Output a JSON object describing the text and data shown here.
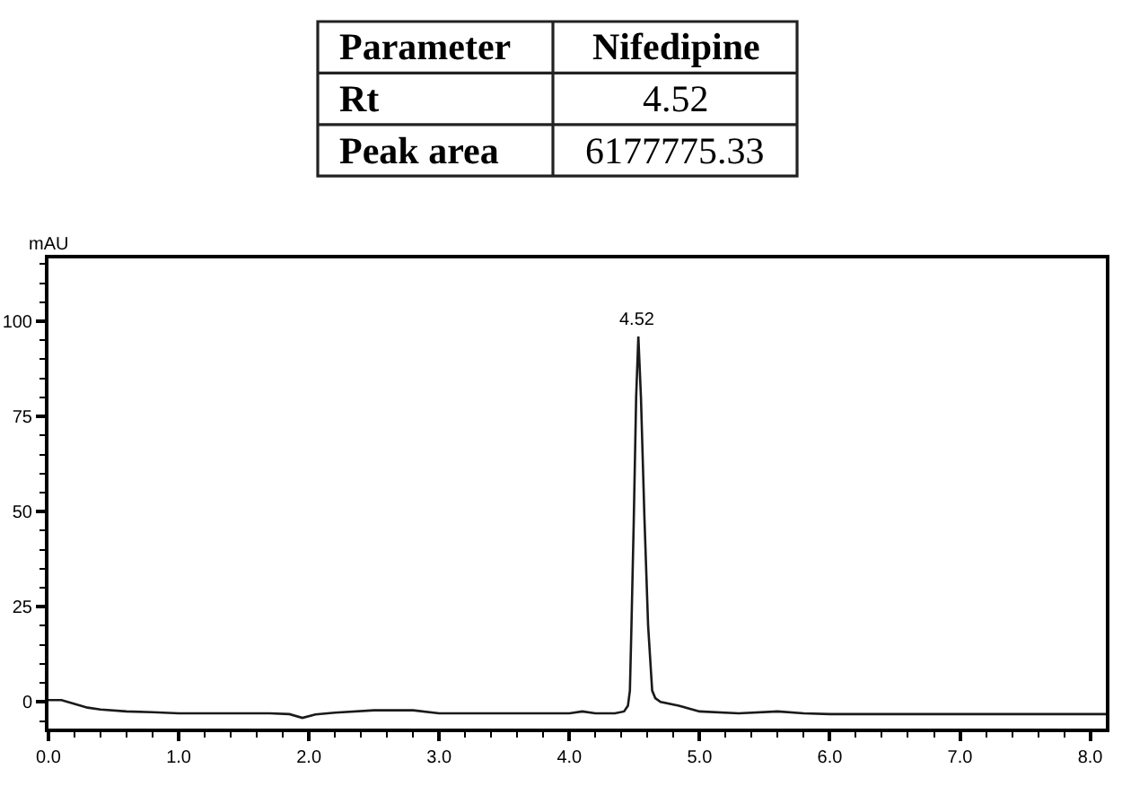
{
  "chart_data": [
    {
      "type": "other",
      "annotations": [
        "Parameter",
        "Nifedipine",
        "Rt",
        "4.52",
        "Peak area",
        "6177775.33"
      ]
    },
    {
      "type": "line",
      "ylabel": "mAU",
      "color": "#1a1a1a",
      "grid": false,
      "legend": false,
      "marker": "none",
      "line_style": "solid",
      "x": [
        0.0,
        0.1,
        0.2,
        0.3,
        0.4,
        0.6,
        0.8,
        1.0,
        1.4,
        1.7,
        1.85,
        1.95,
        2.05,
        2.2,
        2.5,
        2.8,
        3.0,
        3.5,
        4.0,
        4.1,
        4.2,
        4.35,
        4.42,
        4.45,
        4.465,
        4.477,
        4.495,
        4.513,
        4.53,
        4.55,
        4.577,
        4.605,
        4.636,
        4.66,
        4.7,
        4.84,
        5.0,
        5.3,
        5.6,
        5.8,
        6.0,
        7.0,
        8.0,
        8.12
      ],
      "values": [
        0.5,
        0.5,
        -0.5,
        -1.5,
        -2.0,
        -2.5,
        -2.7,
        -3.0,
        -3.0,
        -3.0,
        -3.2,
        -4.2,
        -3.3,
        -2.8,
        -2.2,
        -2.2,
        -3.0,
        -3.0,
        -3.0,
        -2.5,
        -3.0,
        -3.0,
        -2.5,
        -1.0,
        3,
        20,
        48,
        80,
        96,
        80,
        48,
        20,
        3,
        1.0,
        0.0,
        -1.0,
        -2.5,
        -3.0,
        -2.5,
        -3.0,
        -3.2,
        -3.2,
        -3.2,
        -3.2
      ],
      "xlim": [
        0,
        8.12
      ],
      "ylim": [
        -7,
        116.5
      ],
      "xticks": [
        {
          "value": 0,
          "label": "0.0"
        },
        {
          "value": 0.2,
          "label": null
        },
        {
          "value": 0.4,
          "label": null
        },
        {
          "value": 0.6,
          "label": null
        },
        {
          "value": 0.8,
          "label": null
        },
        {
          "value": 1,
          "label": "1.0"
        },
        {
          "value": 1.2,
          "label": null
        },
        {
          "value": 1.4,
          "label": null
        },
        {
          "value": 1.6,
          "label": null
        },
        {
          "value": 1.8,
          "label": null
        },
        {
          "value": 2,
          "label": "2.0"
        },
        {
          "value": 2.2,
          "label": null
        },
        {
          "value": 2.4,
          "label": null
        },
        {
          "value": 2.6,
          "label": null
        },
        {
          "value": 2.8,
          "label": null
        },
        {
          "value": 3,
          "label": "3.0"
        },
        {
          "value": 3.2,
          "label": null
        },
        {
          "value": 3.4,
          "label": null
        },
        {
          "value": 3.6,
          "label": null
        },
        {
          "value": 3.8,
          "label": null
        },
        {
          "value": 4,
          "label": "4.0"
        },
        {
          "value": 4.2,
          "label": null
        },
        {
          "value": 4.4,
          "label": null
        },
        {
          "value": 4.6,
          "label": null
        },
        {
          "value": 4.8,
          "label": null
        },
        {
          "value": 5,
          "label": "5.0"
        },
        {
          "value": 5.2,
          "label": null
        },
        {
          "value": 5.4,
          "label": null
        },
        {
          "value": 5.6,
          "label": null
        },
        {
          "value": 5.8,
          "label": null
        },
        {
          "value": 6,
          "label": "6.0"
        },
        {
          "value": 6.2,
          "label": null
        },
        {
          "value": 6.4,
          "label": null
        },
        {
          "value": 6.6,
          "label": null
        },
        {
          "value": 6.8,
          "label": null
        },
        {
          "value": 7,
          "label": "7.0"
        },
        {
          "value": 7.2,
          "label": null
        },
        {
          "value": 7.4,
          "label": null
        },
        {
          "value": 7.6,
          "label": null
        },
        {
          "value": 7.8,
          "label": null
        },
        {
          "value": 8,
          "label": "8.0"
        }
      ],
      "yticks": [
        {
          "value": -5,
          "label": null
        },
        0,
        {
          "value": 5,
          "label": null
        },
        {
          "value": 10,
          "label": null
        },
        {
          "value": 15,
          "label": null
        },
        {
          "value": 20,
          "label": null
        },
        25,
        {
          "value": 30,
          "label": null
        },
        {
          "value": 35,
          "label": null
        },
        {
          "value": 40,
          "label": null
        },
        {
          "value": 45,
          "label": null
        },
        50,
        {
          "value": 55,
          "label": null
        },
        {
          "value": 60,
          "label": null
        },
        {
          "value": 65,
          "label": null
        },
        {
          "value": 70,
          "label": null
        },
        75,
        {
          "value": 80,
          "label": null
        },
        {
          "value": 85,
          "label": null
        },
        {
          "value": 90,
          "label": null
        },
        {
          "value": 95,
          "label": null
        },
        100,
        {
          "value": 105,
          "label": null
        },
        {
          "value": 110,
          "label": null
        },
        {
          "value": 115,
          "label": null
        }
      ],
      "annotations": [
        {
          "text": "4.52",
          "x": 4.52,
          "y": 96
        }
      ]
    }
  ]
}
